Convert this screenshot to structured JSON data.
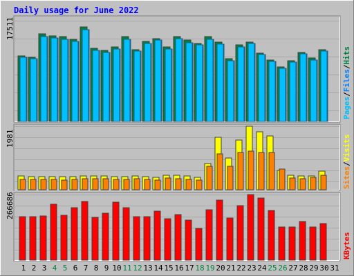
{
  "title": "Daily usage for June 2022",
  "colors": {
    "background": "#c0c0c0",
    "border_light": "#ffffff",
    "border_dark": "#808080",
    "title": "#0000ff",
    "hits": "#008040",
    "files": "#0080ff",
    "pages": "#00c0ff",
    "visits": "#ffff00",
    "sites": "#ff8000",
    "kbytes": "#ff0000",
    "weekend_label": "#008040",
    "weekday_label": "#000000"
  },
  "chart_data": [
    {
      "type": "bar",
      "panel": "hits-files-pages",
      "scale_max_label": "17511",
      "ylim": [
        0,
        17511
      ],
      "legend": [
        "Hits",
        "Files",
        "Pages"
      ],
      "legend_placement": "right-vertical",
      "categories": [
        "1",
        "2",
        "3",
        "4",
        "5",
        "6",
        "7",
        "8",
        "9",
        "10",
        "11",
        "12",
        "13",
        "14",
        "15",
        "16",
        "17",
        "18",
        "19",
        "20",
        "21",
        "22",
        "23",
        "24",
        "25",
        "26",
        "27",
        "28",
        "29",
        "30",
        "31"
      ],
      "series": [
        {
          "name": "Hits",
          "values": [
            11400,
            11200,
            15200,
            14900,
            14700,
            14300,
            16400,
            12700,
            12300,
            12900,
            14700,
            12500,
            13900,
            14400,
            12900,
            14800,
            14100,
            13600,
            14700,
            13800,
            10900,
            13300,
            13800,
            11900,
            10700,
            9500,
            10600,
            12000,
            11000,
            12500,
            null
          ]
        },
        {
          "name": "Files",
          "values": [
            11100,
            10900,
            14800,
            14500,
            14300,
            13900,
            16000,
            12400,
            12000,
            12600,
            14300,
            12200,
            13600,
            14100,
            12600,
            14400,
            13700,
            13300,
            14300,
            13400,
            10600,
            12900,
            13500,
            11600,
            10400,
            9200,
            10300,
            11700,
            10700,
            12200,
            null
          ]
        },
        {
          "name": "Pages",
          "values": [
            11100,
            10900,
            14800,
            14500,
            14300,
            13900,
            16000,
            12400,
            12000,
            12600,
            14300,
            12200,
            13600,
            14100,
            12600,
            14400,
            13700,
            13300,
            14300,
            13400,
            10600,
            12900,
            13500,
            11600,
            10400,
            9200,
            10300,
            11700,
            10700,
            12200,
            null
          ]
        }
      ]
    },
    {
      "type": "bar",
      "panel": "visits-sites",
      "scale_max_label": "1981",
      "ylim": [
        0,
        1981
      ],
      "legend": [
        "Visits",
        "Sites"
      ],
      "legend_placement": "right-vertical",
      "categories": [
        "1",
        "2",
        "3",
        "4",
        "5",
        "6",
        "7",
        "8",
        "9",
        "10",
        "11",
        "12",
        "13",
        "14",
        "15",
        "16",
        "17",
        "18",
        "19",
        "20",
        "21",
        "22",
        "23",
        "24",
        "25",
        "26",
        "27",
        "28",
        "29",
        "30",
        "31"
      ],
      "series": [
        {
          "name": "Visits",
          "values": [
            420,
            410,
            410,
            400,
            400,
            410,
            440,
            440,
            430,
            410,
            410,
            420,
            410,
            380,
            460,
            460,
            430,
            380,
            820,
            1640,
            1000,
            1560,
            1990,
            1810,
            1680,
            600,
            450,
            430,
            440,
            580,
            null
          ]
        },
        {
          "name": "Sites",
          "values": [
            330,
            320,
            330,
            320,
            310,
            330,
            340,
            350,
            340,
            320,
            330,
            340,
            320,
            310,
            360,
            350,
            330,
            300,
            740,
            1120,
            740,
            1160,
            1200,
            1170,
            1160,
            650,
            360,
            350,
            380,
            460,
            null
          ]
        }
      ]
    },
    {
      "type": "bar",
      "panel": "kbytes",
      "scale_max_label": "266686",
      "ylim": [
        0,
        266686
      ],
      "legend": [
        "KBytes"
      ],
      "legend_placement": "right-vertical",
      "categories": [
        "1",
        "2",
        "3",
        "4",
        "5",
        "6",
        "7",
        "8",
        "9",
        "10",
        "11",
        "12",
        "13",
        "14",
        "15",
        "16",
        "17",
        "18",
        "19",
        "20",
        "21",
        "22",
        "23",
        "24",
        "25",
        "26",
        "27",
        "28",
        "29",
        "30",
        "31"
      ],
      "series": [
        {
          "name": "KBytes",
          "values": [
            178000,
            178000,
            180000,
            226000,
            182000,
            212000,
            240000,
            174000,
            192000,
            236000,
            214000,
            178000,
            176000,
            200000,
            168000,
            186000,
            162000,
            128000,
            206000,
            244000,
            170000,
            222000,
            268000,
            252000,
            202000,
            134000,
            136000,
            158000,
            136000,
            150000,
            null
          ]
        }
      ]
    }
  ],
  "x_labels": [
    {
      "day": "1",
      "weekend": false
    },
    {
      "day": "2",
      "weekend": false
    },
    {
      "day": "3",
      "weekend": false
    },
    {
      "day": "4",
      "weekend": true
    },
    {
      "day": "5",
      "weekend": true
    },
    {
      "day": "6",
      "weekend": false
    },
    {
      "day": "7",
      "weekend": false
    },
    {
      "day": "8",
      "weekend": false
    },
    {
      "day": "9",
      "weekend": false
    },
    {
      "day": "10",
      "weekend": false
    },
    {
      "day": "11",
      "weekend": true
    },
    {
      "day": "12",
      "weekend": true
    },
    {
      "day": "13",
      "weekend": false
    },
    {
      "day": "14",
      "weekend": false
    },
    {
      "day": "15",
      "weekend": false
    },
    {
      "day": "16",
      "weekend": false
    },
    {
      "day": "17",
      "weekend": false
    },
    {
      "day": "18",
      "weekend": true
    },
    {
      "day": "19",
      "weekend": true
    },
    {
      "day": "20",
      "weekend": false
    },
    {
      "day": "21",
      "weekend": false
    },
    {
      "day": "22",
      "weekend": false
    },
    {
      "day": "23",
      "weekend": false
    },
    {
      "day": "24",
      "weekend": false
    },
    {
      "day": "25",
      "weekend": true
    },
    {
      "day": "26",
      "weekend": true
    },
    {
      "day": "27",
      "weekend": false
    },
    {
      "day": "28",
      "weekend": false
    },
    {
      "day": "29",
      "weekend": false
    },
    {
      "day": "30",
      "weekend": false
    },
    {
      "day": "31",
      "weekend": false
    }
  ],
  "legend_separator": "/"
}
